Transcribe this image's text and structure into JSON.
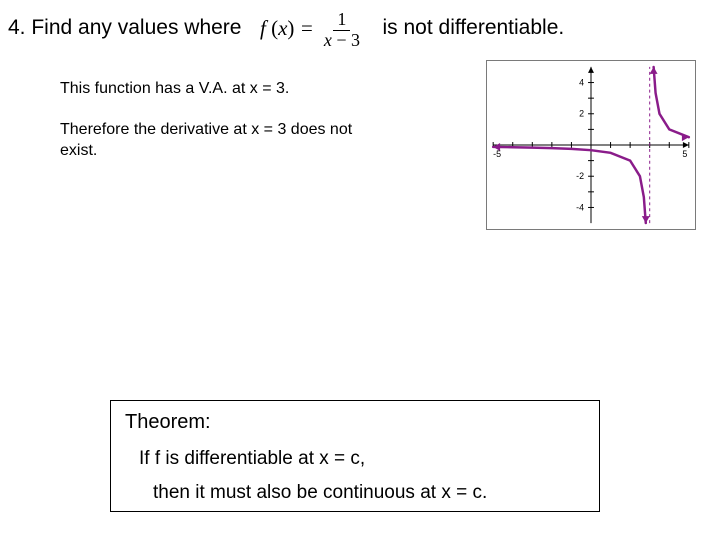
{
  "question": {
    "number": "4.",
    "prefix": "Find any values where",
    "suffix": "is not differentiable.",
    "fn": "f",
    "var": "x",
    "eq": "=",
    "numer": "1",
    "denom_left": "x",
    "denom_minus": "−",
    "denom_right": "3"
  },
  "explanation": {
    "line1": "This function has a V.A. at x = 3.",
    "line2": "Therefore the derivative at x = 3 does not exist."
  },
  "theorem": {
    "title": "Theorem:",
    "line1": "If f is differentiable at x = c,",
    "line2": "then it must also be continuous at x = c."
  },
  "graph": {
    "type": "function-plot",
    "xlim": [
      -5,
      5
    ],
    "ylim": [
      -5,
      5
    ],
    "xtick_step": 1,
    "ytick_step": 2,
    "xticks_labeled": [
      -5,
      5
    ],
    "yticks_labeled": [
      -4,
      -2,
      2,
      4
    ],
    "asymptote_x": 3,
    "curve_color": "#8a1c8a",
    "curve_width": 2.5,
    "axis_color": "#000000",
    "tick_color": "#000000",
    "background_color": "#ffffff",
    "label_fontsize": 9,
    "label_color": "#000000",
    "series": [
      {
        "mode": "branch",
        "x_from": -5,
        "x_to": 2.8,
        "points": [
          [
            -5,
            -0.125
          ],
          [
            -4,
            -0.143
          ],
          [
            -3,
            -0.167
          ],
          [
            -2,
            -0.2
          ],
          [
            -1,
            -0.25
          ],
          [
            0,
            -0.333
          ],
          [
            1,
            -0.5
          ],
          [
            2,
            -1
          ],
          [
            2.5,
            -2
          ],
          [
            2.7,
            -3.333
          ],
          [
            2.8,
            -5
          ]
        ]
      },
      {
        "mode": "branch",
        "x_from": 3.2,
        "x_to": 5,
        "points": [
          [
            3.2,
            5
          ],
          [
            3.3,
            3.333
          ],
          [
            3.5,
            2
          ],
          [
            4,
            1
          ],
          [
            5,
            0.5
          ]
        ]
      }
    ]
  }
}
